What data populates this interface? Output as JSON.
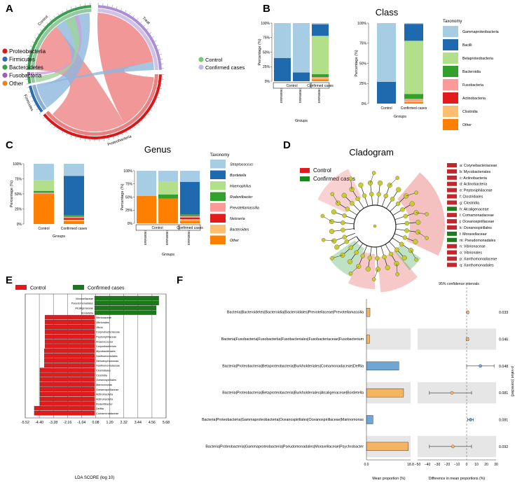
{
  "panel_letters": [
    "A",
    "B",
    "C",
    "D",
    "E",
    "F"
  ],
  "chart_data": [
    {
      "panel": "A",
      "type": "chord",
      "segments": [
        {
          "name": "Control",
          "color": "#3a9d4f"
        },
        {
          "name": "Treat",
          "color": "#a98fd3"
        },
        {
          "name": "Proteobacteria",
          "color": "#d7191c"
        },
        {
          "name": "Firmicutes",
          "color": "#2c6cb0"
        },
        {
          "name": "Bacteroidetes",
          "color": "#3a9d4f"
        },
        {
          "name": "Fusobacteria",
          "color": "#9b5fb5"
        }
      ],
      "ribbons": [
        {
          "from": "Control",
          "to": "Proteobacteria"
        },
        {
          "from": "Control",
          "to": "Firmicutes"
        },
        {
          "from": "Treat",
          "to": "Proteobacteria"
        },
        {
          "from": "Treat",
          "to": "Firmicutes"
        }
      ],
      "legend_left": [
        {
          "label": "Proteobacteria",
          "color": "#d7191c"
        },
        {
          "label": "Firmicutes",
          "color": "#2c6cb0"
        },
        {
          "label": "Bacteroidetes",
          "color": "#3a9d4f"
        },
        {
          "label": "Fusobacteria",
          "color": "#9b5fb5"
        },
        {
          "label": "Other",
          "color": "#f0821e"
        }
      ],
      "legend_right": [
        {
          "label": "Control",
          "color": "#7cc676"
        },
        {
          "label": "Confirmed cases",
          "color": "#c7b6e6"
        }
      ]
    },
    {
      "panel": "B",
      "type": "bar",
      "stacked": true,
      "title": "Class",
      "subplots": [
        {
          "categories": [
            "ERR6806770",
            "ERR6806772",
            "ERR6806739"
          ],
          "groups": [
            {
              "label": "Control",
              "span": [
                0,
                1
              ]
            },
            {
              "label": "Confirmed cases",
              "span": [
                2,
                2
              ]
            }
          ],
          "ylabel": "Percentage (%)",
          "xlabel": "Groups",
          "ylim": [
            0,
            100
          ],
          "yticks": [
            "0%",
            "25%",
            "50%",
            "75%",
            "100%"
          ],
          "series": [
            {
              "name": "Other",
              "values": [
                0,
                0,
                3
              ]
            },
            {
              "name": "Clostridia",
              "values": [
                0,
                0,
                2
              ]
            },
            {
              "name": "Actinobacteria",
              "values": [
                0,
                0,
                0
              ]
            },
            {
              "name": "Fusobacteria",
              "values": [
                0,
                0,
                2
              ]
            },
            {
              "name": "Bacteroidia",
              "values": [
                0,
                0,
                5
              ]
            },
            {
              "name": "Betaproteobacteria",
              "values": [
                0,
                0,
                66
              ]
            },
            {
              "name": "Bacilli",
              "values": [
                40,
                15,
                20
              ]
            },
            {
              "name": "Gammaproteobacteria",
              "values": [
                60,
                85,
                2
              ]
            }
          ]
        },
        {
          "categories": [
            "Control",
            "Confirmed cases"
          ],
          "ylabel": "Percentage (%)",
          "xlabel": "Groups",
          "ylim": [
            0,
            100
          ],
          "yticks": [
            "0%",
            "25%",
            "50%",
            "75%",
            "100%"
          ],
          "series": [
            {
              "name": "Other",
              "values": [
                0,
                2
              ]
            },
            {
              "name": "Clostridia",
              "values": [
                0,
                1
              ]
            },
            {
              "name": "Actinobacteria",
              "values": [
                0,
                0
              ]
            },
            {
              "name": "Fusobacteria",
              "values": [
                0,
                3
              ]
            },
            {
              "name": "Bacteroidia",
              "values": [
                0,
                6
              ]
            },
            {
              "name": "Betaproteobacteria",
              "values": [
                0,
                66
              ]
            },
            {
              "name": "Bacilli",
              "values": [
                27,
                21
              ]
            },
            {
              "name": "Gammaproteobacteria",
              "values": [
                73,
                1
              ]
            }
          ]
        }
      ],
      "legend_title": "Taxonomy",
      "legend": [
        {
          "label": "Gammaproteobacteria",
          "color": "#a6cde3"
        },
        {
          "label": "Bacilli",
          "color": "#1f69ae"
        },
        {
          "label": "Betaproteobacteria",
          "color": "#b2df8a"
        },
        {
          "label": "Bacteroidia",
          "color": "#33a02c"
        },
        {
          "label": "Fusobacteria",
          "color": "#fb9a99"
        },
        {
          "label": "Actinobacteria",
          "color": "#e31a1c"
        },
        {
          "label": "Clostridia",
          "color": "#fdbf6f"
        },
        {
          "label": "Other",
          "color": "#ff7f00"
        }
      ]
    },
    {
      "panel": "C",
      "type": "bar",
      "stacked": true,
      "title": "Genus",
      "subplots": [
        {
          "categories": [
            "Control",
            "Confirmed cases"
          ],
          "ylabel": "Percentage (%)",
          "xlabel": "Groups",
          "ylim": [
            0,
            100
          ],
          "yticks": [
            "0%",
            "25%",
            "50%",
            "75%",
            "100%"
          ],
          "series": [
            {
              "name": "Other",
              "values": [
                50,
                5
              ]
            },
            {
              "name": "Bacteroides",
              "values": [
                0,
                2
              ]
            },
            {
              "name": "Neisseria",
              "values": [
                0,
                3
              ]
            },
            {
              "name": "Prevotellamassilia",
              "values": [
                2,
                2
              ]
            },
            {
              "name": "Rodentibacter",
              "values": [
                3,
                3
              ]
            },
            {
              "name": "Haemophilus",
              "values": [
                18,
                0
              ]
            },
            {
              "name": "Bordetella",
              "values": [
                0,
                65
              ]
            },
            {
              "name": "Streptococcus",
              "values": [
                27,
                20
              ]
            }
          ]
        },
        {
          "categories": [
            "ERR6806770",
            "ERR6806772",
            "ERR6806739"
          ],
          "groups": [
            {
              "label": "Control",
              "span": [
                0,
                1
              ]
            },
            {
              "label": "Confirmed cases",
              "span": [
                2,
                2
              ]
            }
          ],
          "ylabel": "Percentage (%)",
          "xlabel": "Groups",
          "ylim": [
            0,
            100
          ],
          "yticks": [
            "0%",
            "25%",
            "50%",
            "75%",
            "100%"
          ],
          "series": [
            {
              "name": "Other",
              "values": [
                52,
                47,
                5
              ]
            },
            {
              "name": "Bacteroides",
              "values": [
                0,
                0,
                3
              ]
            },
            {
              "name": "Neisseria",
              "values": [
                0,
                0,
                3
              ]
            },
            {
              "name": "Prevotellamassilia",
              "values": [
                0,
                0,
                3
              ]
            },
            {
              "name": "Rodentibacter",
              "values": [
                0,
                8,
                3
              ]
            },
            {
              "name": "Haemophilus",
              "values": [
                0,
                25,
                0
              ]
            },
            {
              "name": "Bordetella",
              "values": [
                0,
                0,
                62
              ]
            },
            {
              "name": "Streptococcus",
              "values": [
                48,
                20,
                21
              ]
            }
          ]
        }
      ],
      "legend_title": "Taxonomy",
      "legend": [
        {
          "label": "Streptococcus",
          "color": "#a6cde3"
        },
        {
          "label": "Bordetella",
          "color": "#1f69ae"
        },
        {
          "label": "Haemophilus",
          "color": "#b2df8a"
        },
        {
          "label": "Rodentibacter",
          "color": "#33a02c"
        },
        {
          "label": "Prevotellamassilia",
          "color": "#fb9a99"
        },
        {
          "label": "Neisseria",
          "color": "#e31a1c"
        },
        {
          "label": "Bacteroides",
          "color": "#fdbf6f"
        },
        {
          "label": "Other",
          "color": "#ff7f00"
        }
      ]
    },
    {
      "panel": "D",
      "type": "cladogram",
      "title": "Cladogram",
      "groups": [
        {
          "label": "Control",
          "color": "#e31a1c"
        },
        {
          "label": "Confirmed cases",
          "color": "#1a8a1a"
        }
      ],
      "taxa": [
        {
          "label": "a: Corynebacteriaceae",
          "group": "Control"
        },
        {
          "label": "b: Mycobacteriales",
          "group": "Control"
        },
        {
          "label": "c: Actinobacteria",
          "group": "Control"
        },
        {
          "label": "d: Actinobacteria",
          "group": "Control"
        },
        {
          "label": "e: Peptoniphilaceae",
          "group": "Control"
        },
        {
          "label": "f: Clostridiales",
          "group": "Control"
        },
        {
          "label": "g: Clostridia",
          "group": "Control"
        },
        {
          "label": "h: Alcaligenaceae",
          "group": "Confirmed cases"
        },
        {
          "label": "i: Comamonadaceae",
          "group": "Control"
        },
        {
          "label": "j: Oceanospirillaceae",
          "group": "Control"
        },
        {
          "label": "k: Oceanospirillales",
          "group": "Control"
        },
        {
          "label": "l: Moraxellaceae",
          "group": "Confirmed cases"
        },
        {
          "label": "m: Pseudomonadales",
          "group": "Confirmed cases"
        },
        {
          "label": "n: Vibrionaceae",
          "group": "Control"
        },
        {
          "label": "o: Vibrionales",
          "group": "Control"
        },
        {
          "label": "p: Xanthomonadaceae",
          "group": "Control"
        },
        {
          "label": "q: Xanthomonadales",
          "group": "Control"
        }
      ]
    },
    {
      "panel": "E",
      "type": "bar",
      "orientation": "horizontal",
      "xlabel": "LDA SCORE (log 10)",
      "xlim": [
        -5.52,
        5.68
      ],
      "xticks": [
        -5.52,
        -4.4,
        -3.28,
        -2.16,
        -1.04,
        0.08,
        1.2,
        2.32,
        3.44,
        4.56,
        5.68
      ],
      "legend": [
        {
          "label": "Control",
          "color": "#e31a1c"
        },
        {
          "label": "Confirmed cases",
          "color": "#1a7a1a"
        }
      ],
      "categories": [
        "Moraxellaceae",
        "Pseudomonadales",
        "Alcaligenaceae",
        "Bordetella",
        "Vibrionaceae",
        "Vibrionales",
        "Vibrio",
        "Corynebacteriaceae",
        "Peptoniphilaceae",
        "Anaerococcus",
        "Corynebacterium",
        "Mycobacteriales",
        "Xanthomonadales",
        "Stenotrophomonas",
        "Xanthomonadaceae",
        "Clostridiales",
        "Clostridia",
        "Oceanospirillales",
        "Marinomonas",
        "Oceanospirillaceae",
        "Actinobacteria",
        "Actinobacteria",
        "Rodentibacter",
        "Delftia",
        "Comamonadaceae"
      ],
      "values": [
        5.1,
        5.1,
        4.9,
        4.9,
        -3.95,
        -3.95,
        -3.95,
        -3.95,
        -3.95,
        -3.95,
        -3.95,
        -4.0,
        -4.0,
        -4.0,
        -4.0,
        -4.35,
        -4.35,
        -4.35,
        -4.35,
        -4.35,
        -4.35,
        -4.35,
        -4.35,
        -4.8,
        -4.8
      ]
    },
    {
      "panel": "F",
      "type": "extended_error_bar",
      "ci_label": "95% confidence intervals",
      "rows": [
        {
          "taxon": "Bacteria|Bacteroidetes|Bacteroidia|Bacteroidales|Prevotellaceae|Prevotellamassilia",
          "mean_control": 1.5,
          "mean_cases": 0.1,
          "diff": 1.0,
          "ci": [
            0.2,
            2.0
          ],
          "p": "0.033",
          "color": "#f5b461"
        },
        {
          "taxon": "Bacteria|Fusobacteria|Fusobacteriia|Fusobacteriales|Fusobacteriaceae|Fusobacterium",
          "mean_control": 1.3,
          "mean_cases": 0.1,
          "diff": 0.8,
          "ci": [
            -0.3,
            2.0
          ],
          "p": "0.046",
          "color": "#f5b461"
        },
        {
          "taxon": "Bacteria|Proteobacteria|Betaproteobacteria|Burkholderiales|Comamonadaceae|Delftia",
          "mean_control": 0.1,
          "mean_cases": 13.8,
          "diff": 14.0,
          "ci": [
            0,
            28.0
          ],
          "p": "0.048",
          "color": "#6ea6d6"
        },
        {
          "taxon": "Bacteria|Proteobacteria|Betaproteobacteria|Burkholderiales|Alcaligenaceae|Bordetella",
          "mean_control": 15.8,
          "mean_cases": 0.1,
          "diff": -15.0,
          "ci": [
            -38.0,
            5.0
          ],
          "p": "0.081",
          "color": "#f5b461"
        },
        {
          "taxon": "Bacteria|Proteobacteria|Gammaproteobacteria|Oceanospirillales|Oceanospirillaceae|Marinomonas",
          "mean_control": 0.1,
          "mean_cases": 2.8,
          "diff": 4.0,
          "ci": [
            1.0,
            7.0
          ],
          "p": "0.081",
          "color": "#6ea6d6"
        },
        {
          "taxon": "Bacteria|Proteobacteria|Gammaproteobacteria|Pseudomonadales|Moraxellaceae|Psychrobacter",
          "mean_control": 17.8,
          "mean_cases": 0.3,
          "diff": -14.0,
          "ci": [
            -38.0,
            5.0
          ],
          "p": "0.092",
          "color": "#f5b461"
        }
      ],
      "mean_xlabel": "Mean proportion (%)",
      "mean_xticks": [
        "0.0",
        "18.8"
      ],
      "mean_xlim": [
        0,
        18.8
      ],
      "diff_xlabel": "Difference in mean proportions (%)",
      "diff_xticks": [
        "−50",
        "−40",
        "−30",
        "−20",
        "−10",
        "0",
        "10",
        "20",
        "30"
      ],
      "diff_xlim": [
        -50,
        30
      ],
      "pvalue_label": "p-value (corrected)"
    }
  ]
}
